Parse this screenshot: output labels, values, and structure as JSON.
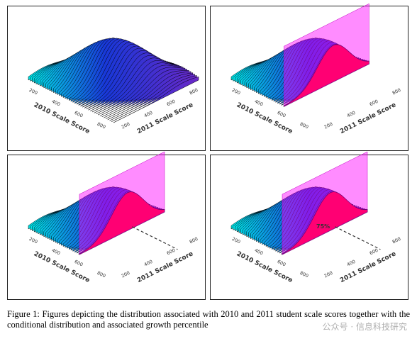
{
  "panels": [
    {
      "x_axis_label": "2010 Scale Score",
      "y_axis_label": "2011 Scale Score",
      "x_ticks": [
        200,
        400,
        600,
        800
      ],
      "y_ticks": [
        200,
        400,
        600,
        800
      ]
    },
    {
      "x_axis_label": "2010 Scale Score",
      "y_axis_label": "2011 Scale Score",
      "x_ticks": [
        200,
        400,
        600,
        800
      ],
      "y_ticks": [
        200,
        400,
        600,
        800
      ]
    },
    {
      "x_axis_label": "2010 Scale Score",
      "y_axis_label": "2011 Scale Score",
      "x_ticks": [
        200,
        400,
        600,
        800
      ],
      "y_ticks": [
        200,
        400,
        600,
        800
      ]
    },
    {
      "x_axis_label": "2010 Scale Score",
      "y_axis_label": "2011 Scale Score",
      "x_ticks": [
        200,
        400,
        600,
        800
      ],
      "y_ticks": [
        200,
        400,
        600,
        800
      ],
      "annotation": "75%"
    }
  ],
  "caption": "Figure 1:  Figures depicting the distribution associated with 2010 and 2011 student scale scores together with the conditional distribution and associated growth percentile",
  "watermark": "公众号 · 信息科技研究"
}
